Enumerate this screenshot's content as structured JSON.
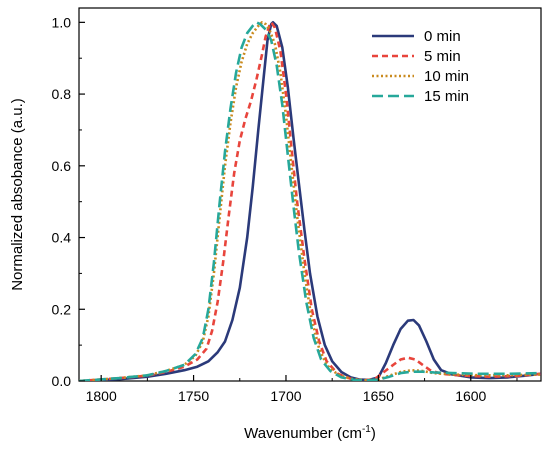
{
  "chart_data": {
    "type": "line",
    "xlabel": "Wavenumber (cm",
    "xlabel_sup": "-1",
    "xlabel_close": ")",
    "ylabel": "Normalized absobance (a.u.)",
    "xlim": [
      1812,
      1562
    ],
    "ylim": [
      0,
      1.04
    ],
    "x_reversed": true,
    "x_ticks": [
      1800,
      1750,
      1700,
      1650,
      1600
    ],
    "y_ticks": [
      0.0,
      0.2,
      0.4,
      0.6,
      0.8,
      1.0
    ],
    "x_tick_labels": [
      "1800",
      "1750",
      "1700",
      "1650",
      "1600"
    ],
    "y_tick_labels": [
      "0.0",
      "0.2",
      "0.4",
      "0.6",
      "0.8",
      "1.0"
    ],
    "grid": false,
    "legend_position": "top-right",
    "series": [
      {
        "name": "0 min",
        "color": "#2b3a7a",
        "dash": "solid",
        "points": [
          [
            1812,
            0.0
          ],
          [
            1790,
            0.005
          ],
          [
            1775,
            0.012
          ],
          [
            1765,
            0.02
          ],
          [
            1755,
            0.03
          ],
          [
            1748,
            0.04
          ],
          [
            1742,
            0.055
          ],
          [
            1737,
            0.08
          ],
          [
            1733,
            0.11
          ],
          [
            1729,
            0.17
          ],
          [
            1725,
            0.26
          ],
          [
            1721,
            0.4
          ],
          [
            1718,
            0.54
          ],
          [
            1715,
            0.7
          ],
          [
            1712,
            0.85
          ],
          [
            1710,
            0.95
          ],
          [
            1708,
            0.995
          ],
          [
            1707,
            1.0
          ],
          [
            1705,
            0.99
          ],
          [
            1702,
            0.93
          ],
          [
            1699,
            0.82
          ],
          [
            1696,
            0.68
          ],
          [
            1693,
            0.55
          ],
          [
            1690,
            0.42
          ],
          [
            1687,
            0.3
          ],
          [
            1683,
            0.18
          ],
          [
            1679,
            0.1
          ],
          [
            1675,
            0.055
          ],
          [
            1670,
            0.025
          ],
          [
            1665,
            0.01
          ],
          [
            1660,
            0.004
          ],
          [
            1655,
            0.003
          ],
          [
            1650,
            0.01
          ],
          [
            1646,
            0.05
          ],
          [
            1642,
            0.1
          ],
          [
            1638,
            0.145
          ],
          [
            1634,
            0.168
          ],
          [
            1631,
            0.17
          ],
          [
            1628,
            0.155
          ],
          [
            1624,
            0.11
          ],
          [
            1620,
            0.06
          ],
          [
            1616,
            0.03
          ],
          [
            1610,
            0.018
          ],
          [
            1600,
            0.01
          ],
          [
            1590,
            0.008
          ],
          [
            1580,
            0.01
          ],
          [
            1570,
            0.015
          ],
          [
            1562,
            0.02
          ]
        ]
      },
      {
        "name": "5 min",
        "color": "#e8453c",
        "dash": "dash",
        "points": [
          [
            1812,
            0.0
          ],
          [
            1790,
            0.008
          ],
          [
            1775,
            0.015
          ],
          [
            1765,
            0.025
          ],
          [
            1755,
            0.04
          ],
          [
            1748,
            0.06
          ],
          [
            1743,
            0.09
          ],
          [
            1740,
            0.14
          ],
          [
            1737,
            0.22
          ],
          [
            1734,
            0.33
          ],
          [
            1731,
            0.46
          ],
          [
            1728,
            0.58
          ],
          [
            1725,
            0.67
          ],
          [
            1722,
            0.73
          ],
          [
            1719,
            0.78
          ],
          [
            1716,
            0.84
          ],
          [
            1713,
            0.91
          ],
          [
            1711,
            0.96
          ],
          [
            1709,
            0.99
          ],
          [
            1708,
            1.0
          ],
          [
            1706,
            0.985
          ],
          [
            1703,
            0.92
          ],
          [
            1700,
            0.8
          ],
          [
            1697,
            0.65
          ],
          [
            1694,
            0.5
          ],
          [
            1690,
            0.34
          ],
          [
            1686,
            0.2
          ],
          [
            1682,
            0.11
          ],
          [
            1678,
            0.055
          ],
          [
            1672,
            0.02
          ],
          [
            1665,
            0.006
          ],
          [
            1658,
            0.002
          ],
          [
            1652,
            0.005
          ],
          [
            1647,
            0.025
          ],
          [
            1642,
            0.045
          ],
          [
            1638,
            0.06
          ],
          [
            1634,
            0.065
          ],
          [
            1630,
            0.06
          ],
          [
            1626,
            0.045
          ],
          [
            1622,
            0.03
          ],
          [
            1616,
            0.02
          ],
          [
            1605,
            0.015
          ],
          [
            1590,
            0.012
          ],
          [
            1575,
            0.014
          ],
          [
            1562,
            0.02
          ]
        ]
      },
      {
        "name": "10 min",
        "color": "#c98a1e",
        "dash": "dot",
        "points": [
          [
            1812,
            0.0
          ],
          [
            1790,
            0.008
          ],
          [
            1775,
            0.016
          ],
          [
            1765,
            0.028
          ],
          [
            1755,
            0.045
          ],
          [
            1749,
            0.07
          ],
          [
            1745,
            0.11
          ],
          [
            1742,
            0.18
          ],
          [
            1739,
            0.3
          ],
          [
            1736,
            0.45
          ],
          [
            1733,
            0.6
          ],
          [
            1730,
            0.72
          ],
          [
            1727,
            0.82
          ],
          [
            1724,
            0.89
          ],
          [
            1721,
            0.94
          ],
          [
            1718,
            0.97
          ],
          [
            1715,
            0.99
          ],
          [
            1713,
            1.0
          ],
          [
            1711,
            0.995
          ],
          [
            1709,
            0.98
          ],
          [
            1706,
            0.94
          ],
          [
            1703,
            0.86
          ],
          [
            1700,
            0.74
          ],
          [
            1697,
            0.6
          ],
          [
            1694,
            0.46
          ],
          [
            1690,
            0.3
          ],
          [
            1686,
            0.17
          ],
          [
            1682,
            0.09
          ],
          [
            1678,
            0.045
          ],
          [
            1672,
            0.018
          ],
          [
            1665,
            0.006
          ],
          [
            1658,
            0.002
          ],
          [
            1650,
            0.004
          ],
          [
            1644,
            0.015
          ],
          [
            1638,
            0.025
          ],
          [
            1632,
            0.03
          ],
          [
            1626,
            0.028
          ],
          [
            1620,
            0.022
          ],
          [
            1610,
            0.018
          ],
          [
            1595,
            0.016
          ],
          [
            1580,
            0.016
          ],
          [
            1562,
            0.018
          ]
        ]
      },
      {
        "name": "15 min",
        "color": "#26a89a",
        "dash": "longdash",
        "points": [
          [
            1812,
            0.0
          ],
          [
            1790,
            0.008
          ],
          [
            1775,
            0.016
          ],
          [
            1765,
            0.028
          ],
          [
            1755,
            0.045
          ],
          [
            1749,
            0.075
          ],
          [
            1745,
            0.12
          ],
          [
            1742,
            0.2
          ],
          [
            1739,
            0.33
          ],
          [
            1736,
            0.49
          ],
          [
            1733,
            0.64
          ],
          [
            1730,
            0.76
          ],
          [
            1727,
            0.86
          ],
          [
            1724,
            0.93
          ],
          [
            1721,
            0.97
          ],
          [
            1718,
            0.99
          ],
          [
            1716,
            1.0
          ],
          [
            1714,
            0.995
          ],
          [
            1711,
            0.98
          ],
          [
            1708,
            0.95
          ],
          [
            1705,
            0.88
          ],
          [
            1702,
            0.77
          ],
          [
            1699,
            0.63
          ],
          [
            1696,
            0.49
          ],
          [
            1693,
            0.36
          ],
          [
            1689,
            0.22
          ],
          [
            1685,
            0.12
          ],
          [
            1681,
            0.06
          ],
          [
            1676,
            0.028
          ],
          [
            1670,
            0.01
          ],
          [
            1663,
            0.003
          ],
          [
            1656,
            0.002
          ],
          [
            1650,
            0.004
          ],
          [
            1644,
            0.012
          ],
          [
            1638,
            0.022
          ],
          [
            1632,
            0.026
          ],
          [
            1626,
            0.026
          ],
          [
            1620,
            0.024
          ],
          [
            1610,
            0.022
          ],
          [
            1595,
            0.02
          ],
          [
            1580,
            0.02
          ],
          [
            1562,
            0.022
          ]
        ]
      }
    ]
  }
}
